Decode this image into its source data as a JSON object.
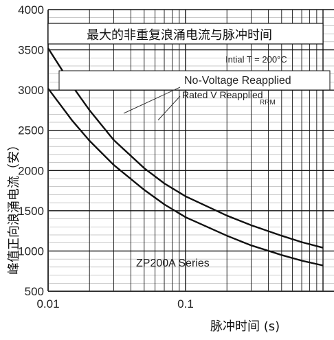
{
  "chart_data": {
    "type": "line",
    "title": "最大的非重复浪涌电流与脉冲时间",
    "xlabel": "脉冲时间 (s)",
    "ylabel": "峰值正向浪涌电流（安）",
    "x_scale": "log",
    "xlim": [
      0.01,
      1
    ],
    "ylim": [
      500,
      4000
    ],
    "x_ticks": [
      "0.01",
      "0.1"
    ],
    "y_ticks": [
      "500",
      "1000",
      "1500",
      "2000",
      "2500",
      "3000",
      "3500",
      "4000"
    ],
    "grid": true,
    "annotations": {
      "initial_temp": "Intial T  = 200°C",
      "no_voltage": "No-Voltage Reapplied",
      "rated_voltage": "Rated V  Reapplied",
      "rrm_sub": "RRM",
      "series": "ZP200A Series"
    },
    "series": [
      {
        "x": [
          0.01,
          0.015,
          0.02,
          0.03,
          0.05,
          0.07,
          0.1,
          0.2,
          0.3,
          0.5,
          0.7,
          1.0
        ],
        "values": [
          3520,
          3050,
          2750,
          2380,
          2030,
          1840,
          1680,
          1440,
          1320,
          1190,
          1110,
          1040
        ]
      },
      {
        "x": [
          0.01,
          0.015,
          0.02,
          0.03,
          0.05,
          0.07,
          0.1,
          0.2,
          0.3,
          0.5,
          0.7,
          1.0
        ],
        "values": [
          3020,
          2620,
          2370,
          2070,
          1760,
          1580,
          1420,
          1190,
          1070,
          950,
          880,
          820
        ]
      }
    ],
    "colors": {
      "line": "#111111",
      "grid": "#111111",
      "axis": "#333333"
    }
  }
}
